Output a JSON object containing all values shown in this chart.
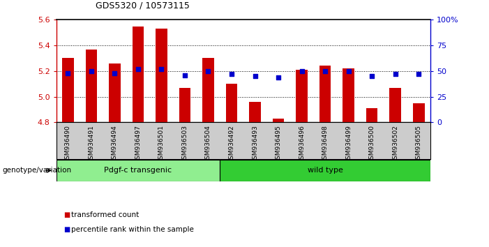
{
  "title": "GDS5320 / 10573115",
  "categories": [
    "GSM936490",
    "GSM936491",
    "GSM936494",
    "GSM936497",
    "GSM936501",
    "GSM936503",
    "GSM936504",
    "GSM936492",
    "GSM936493",
    "GSM936495",
    "GSM936496",
    "GSM936498",
    "GSM936499",
    "GSM936500",
    "GSM936502",
    "GSM936505"
  ],
  "bar_values": [
    5.3,
    5.37,
    5.26,
    5.55,
    5.53,
    5.07,
    5.3,
    5.1,
    4.96,
    4.83,
    5.21,
    5.24,
    5.22,
    4.91,
    5.07,
    4.95
  ],
  "dot_values": [
    48,
    50,
    48,
    52,
    52,
    46,
    50,
    47,
    45,
    44,
    50,
    50,
    50,
    45,
    47,
    47
  ],
  "bar_color": "#cc0000",
  "dot_color": "#0000cc",
  "ymin": 4.8,
  "ymax": 5.6,
  "y2min": 0,
  "y2max": 100,
  "yticks": [
    4.8,
    5.0,
    5.2,
    5.4,
    5.6
  ],
  "y2ticks": [
    0,
    25,
    50,
    75,
    100
  ],
  "y2ticklabels": [
    "0",
    "25",
    "50",
    "75",
    "100%"
  ],
  "grid_values": [
    5.0,
    5.2,
    5.4
  ],
  "groups": [
    {
      "label": "Pdgf-c transgenic",
      "start": 0,
      "end": 7,
      "color": "#90ee90"
    },
    {
      "label": "wild type",
      "start": 7,
      "end": 16,
      "color": "#33cc33"
    }
  ],
  "group_label": "genotype/variation",
  "legend": [
    {
      "label": "transformed count",
      "color": "#cc0000"
    },
    {
      "label": "percentile rank within the sample",
      "color": "#0000cc"
    }
  ],
  "bar_width": 0.5,
  "background_color": "#ffffff",
  "tick_area_color": "#cccccc"
}
